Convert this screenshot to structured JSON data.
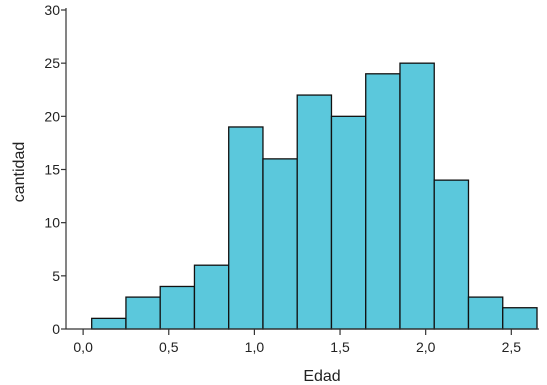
{
  "chart_data": {
    "type": "bar",
    "title": "",
    "xlabel": "Edad",
    "ylabel": "cantidad",
    "xlim": [
      -0.1,
      2.65
    ],
    "ylim": [
      0,
      30
    ],
    "bin_width": 0.2,
    "bins": [
      {
        "x0": 0.05,
        "x1": 0.25,
        "value": 1
      },
      {
        "x0": 0.25,
        "x1": 0.45,
        "value": 3
      },
      {
        "x0": 0.45,
        "x1": 0.65,
        "value": 4
      },
      {
        "x0": 0.65,
        "x1": 0.85,
        "value": 6
      },
      {
        "x0": 0.85,
        "x1": 1.05,
        "value": 19
      },
      {
        "x0": 1.05,
        "x1": 1.25,
        "value": 16
      },
      {
        "x0": 1.25,
        "x1": 1.45,
        "value": 22
      },
      {
        "x0": 1.45,
        "x1": 1.65,
        "value": 20
      },
      {
        "x0": 1.65,
        "x1": 1.85,
        "value": 24
      },
      {
        "x0": 1.85,
        "x1": 2.05,
        "value": 25
      },
      {
        "x0": 2.05,
        "x1": 2.25,
        "value": 14
      },
      {
        "x0": 2.25,
        "x1": 2.45,
        "value": 3
      },
      {
        "x0": 2.45,
        "x1": 2.65,
        "value": 2
      }
    ],
    "x_ticks": [
      {
        "value": 0.0,
        "label": "0,0"
      },
      {
        "value": 0.5,
        "label": "0,5"
      },
      {
        "value": 1.0,
        "label": "1,0"
      },
      {
        "value": 1.5,
        "label": "1,5"
      },
      {
        "value": 2.0,
        "label": "2,0"
      },
      {
        "value": 2.5,
        "label": "2,5"
      }
    ],
    "y_ticks": [
      {
        "value": 0,
        "label": "0"
      },
      {
        "value": 5,
        "label": "5"
      },
      {
        "value": 10,
        "label": "10"
      },
      {
        "value": 15,
        "label": "15"
      },
      {
        "value": 20,
        "label": "20"
      },
      {
        "value": 25,
        "label": "25"
      },
      {
        "value": 30,
        "label": "30"
      }
    ],
    "grid": false,
    "legend": "none",
    "colors": {
      "bar_fill": "#5bc8dc",
      "bar_stroke": "#111111",
      "axis": "#333333"
    }
  }
}
